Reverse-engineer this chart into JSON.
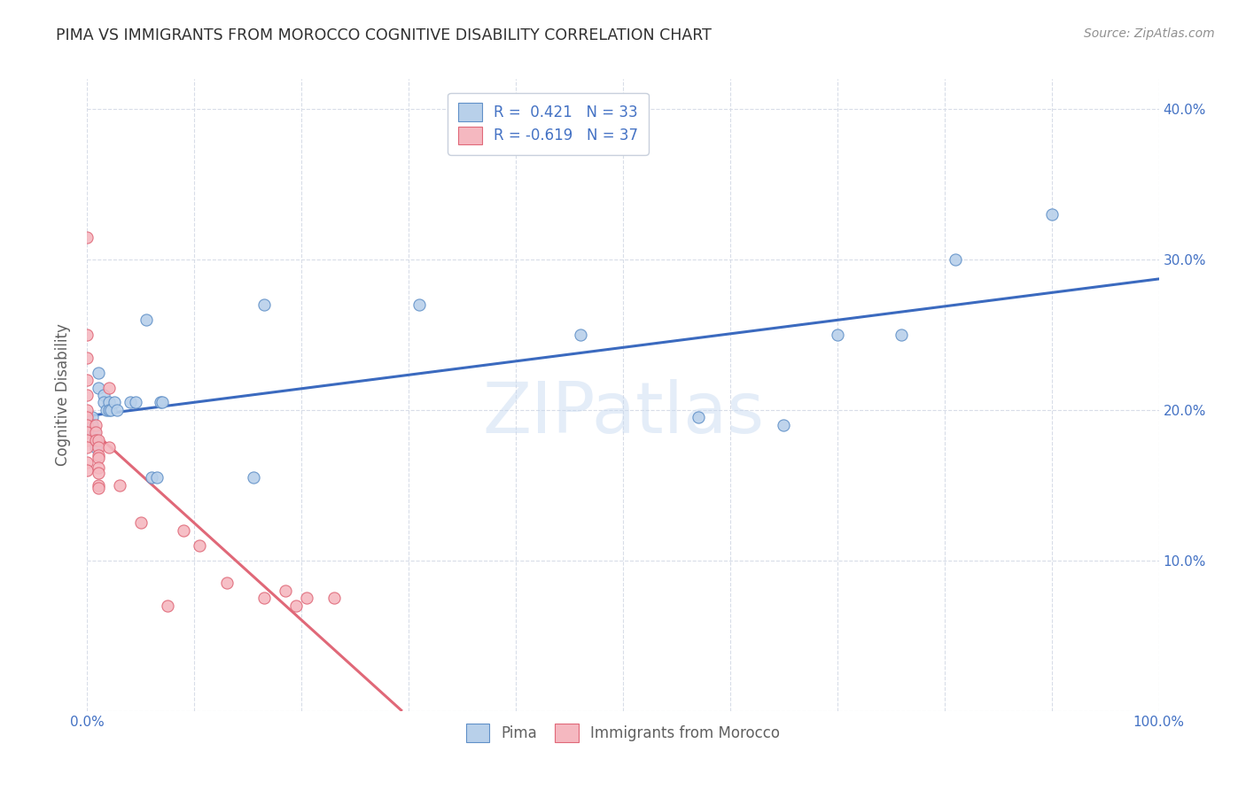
{
  "title": "PIMA VS IMMIGRANTS FROM MOROCCO COGNITIVE DISABILITY CORRELATION CHART",
  "source": "Source: ZipAtlas.com",
  "ylabel": "Cognitive Disability",
  "watermark": "ZIPatlas",
  "xlim": [
    0,
    1.0
  ],
  "ylim": [
    0,
    0.42
  ],
  "xticks": [
    0.0,
    0.1,
    0.2,
    0.3,
    0.4,
    0.5,
    0.6,
    0.7,
    0.8,
    0.9,
    1.0
  ],
  "xtick_labels": [
    "0.0%",
    "",
    "",
    "",
    "",
    "",
    "",
    "",
    "",
    "",
    "100.0%"
  ],
  "yticks": [
    0.0,
    0.1,
    0.2,
    0.3,
    0.4
  ],
  "ytick_labels": [
    "",
    "10.0%",
    "20.0%",
    "30.0%",
    "40.0%"
  ],
  "legend_labels": [
    "Pima",
    "Immigrants from Morocco"
  ],
  "pima_color": "#b8d0ea",
  "morocco_color": "#f5b8c0",
  "pima_edge_color": "#6090c8",
  "morocco_edge_color": "#e06878",
  "pima_line_color": "#3b6abf",
  "morocco_line_color": "#e06878",
  "pima_R": 0.421,
  "pima_N": 33,
  "morocco_R": -0.619,
  "morocco_N": 37,
  "background_color": "#ffffff",
  "grid_color": "#d8dde8",
  "title_color": "#303030",
  "source_color": "#909090",
  "axis_label_color": "#606060",
  "tick_color": "#4472c4",
  "legend_text_color": "#4472c4",
  "pima_points_x": [
    0.005,
    0.005,
    0.005,
    0.007,
    0.008,
    0.008,
    0.01,
    0.01,
    0.015,
    0.015,
    0.018,
    0.02,
    0.02,
    0.022,
    0.025,
    0.028,
    0.04,
    0.045,
    0.055,
    0.06,
    0.065,
    0.068,
    0.07,
    0.155,
    0.165,
    0.31,
    0.46,
    0.57,
    0.65,
    0.7,
    0.76,
    0.81,
    0.9
  ],
  "pima_points_y": [
    0.195,
    0.19,
    0.185,
    0.185,
    0.18,
    0.175,
    0.225,
    0.215,
    0.21,
    0.205,
    0.2,
    0.205,
    0.2,
    0.2,
    0.205,
    0.2,
    0.205,
    0.205,
    0.26,
    0.155,
    0.155,
    0.205,
    0.205,
    0.155,
    0.27,
    0.27,
    0.25,
    0.195,
    0.19,
    0.25,
    0.25,
    0.3,
    0.33
  ],
  "morocco_points_x": [
    0.0,
    0.0,
    0.0,
    0.0,
    0.0,
    0.0,
    0.0,
    0.0,
    0.0,
    0.0,
    0.0,
    0.0,
    0.0,
    0.008,
    0.008,
    0.008,
    0.01,
    0.01,
    0.01,
    0.01,
    0.01,
    0.01,
    0.01,
    0.01,
    0.02,
    0.02,
    0.03,
    0.05,
    0.075,
    0.09,
    0.105,
    0.13,
    0.165,
    0.185,
    0.195,
    0.205,
    0.23
  ],
  "morocco_points_y": [
    0.315,
    0.25,
    0.235,
    0.22,
    0.21,
    0.2,
    0.195,
    0.19,
    0.185,
    0.18,
    0.175,
    0.165,
    0.16,
    0.19,
    0.185,
    0.18,
    0.18,
    0.175,
    0.17,
    0.168,
    0.162,
    0.158,
    0.15,
    0.148,
    0.215,
    0.175,
    0.15,
    0.125,
    0.07,
    0.12,
    0.11,
    0.085,
    0.075,
    0.08,
    0.07,
    0.075,
    0.075
  ]
}
